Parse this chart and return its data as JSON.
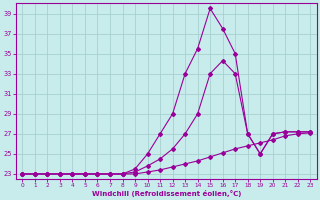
{
  "xlabel": "Windchill (Refroidissement éolien,°C)",
  "ylabel": "",
  "background_color": "#c8ecec",
  "grid_color": "#a8d0d0",
  "line_color": "#990099",
  "xlim": [
    -0.5,
    23.5
  ],
  "ylim": [
    22.5,
    40
  ],
  "xticks": [
    0,
    1,
    2,
    3,
    4,
    5,
    6,
    7,
    8,
    9,
    10,
    11,
    12,
    13,
    14,
    15,
    16,
    17,
    18,
    19,
    20,
    21,
    22,
    23
  ],
  "yticks": [
    23,
    25,
    27,
    29,
    31,
    33,
    35,
    37,
    39
  ],
  "curve1_x": [
    0,
    1,
    2,
    3,
    4,
    5,
    6,
    7,
    8,
    9,
    10,
    11,
    12,
    13,
    14,
    15,
    16,
    17,
    18,
    19,
    20,
    21,
    22,
    23
  ],
  "curve1_y": [
    23,
    23,
    23,
    23,
    23,
    23,
    23,
    23,
    23,
    23,
    23.2,
    23.4,
    23.7,
    24,
    24.3,
    24.7,
    25.1,
    25.5,
    25.8,
    26.1,
    26.4,
    26.8,
    27,
    27.1
  ],
  "curve2_x": [
    0,
    1,
    2,
    3,
    4,
    5,
    6,
    7,
    8,
    9,
    10,
    11,
    12,
    13,
    14,
    15,
    16,
    17,
    18,
    19,
    20,
    21,
    22,
    23
  ],
  "curve2_y": [
    23,
    23,
    23,
    23,
    23,
    23,
    23,
    23,
    23,
    23.2,
    23.8,
    24.5,
    25.5,
    27,
    29,
    33,
    34.3,
    33,
    27,
    25,
    27,
    27.2,
    27.2,
    27.2
  ],
  "curve3_x": [
    0,
    1,
    2,
    3,
    4,
    5,
    6,
    7,
    8,
    9,
    10,
    11,
    12,
    13,
    14,
    15,
    16,
    17,
    18,
    19,
    20,
    21,
    22,
    23
  ],
  "curve3_y": [
    23,
    23,
    23,
    23,
    23,
    23,
    23,
    23,
    23,
    23.5,
    25,
    27,
    29,
    33,
    35.5,
    39.5,
    37.5,
    35,
    27,
    25,
    27,
    27.2,
    27.2,
    27.2
  ]
}
